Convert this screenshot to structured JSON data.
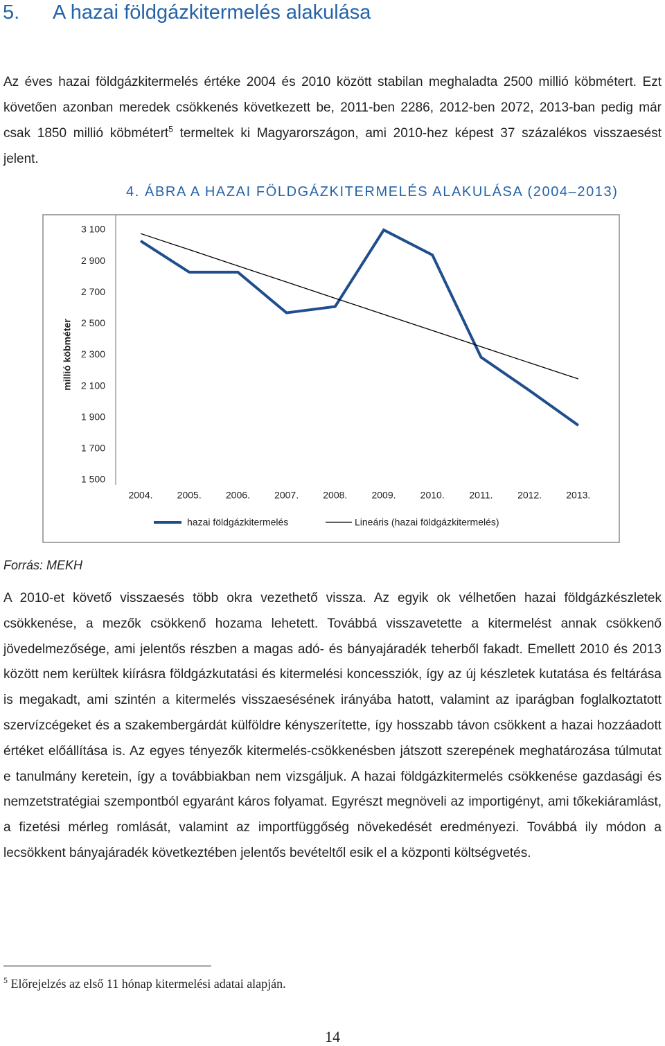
{
  "heading": {
    "number": "5.",
    "title": "A hazai földgázkitermelés alakulása"
  },
  "paragraph_1": {
    "text_before": "Az éves hazai földgázkitermelés értéke 2004 és 2010 között stabilan meghaladta 2500 millió köbmétert. Ezt követően azonban meredek csökkenés következett be, 2011-ben 2286, 2012-ben 2072, 2013-ban pedig már csak 1850 millió köbmétert",
    "footnote_ref": "5",
    "text_after": " termeltek ki Magyarországon, ami 2010-hez képest 37 százalékos visszaesést jelent."
  },
  "figure_caption": "4. ÁBRA A HAZAI FÖLDGÁZKITERMELÉS ALAKULÁSA (2004–2013)",
  "chart_data": {
    "type": "line",
    "ylabel": "millió köbméter",
    "categories": [
      "2004.",
      "2005.",
      "2006.",
      "2007.",
      "2008.",
      "2009.",
      "2010.",
      "2011.",
      "2012.",
      "2013."
    ],
    "series": [
      {
        "name": "hazai földgázkitermelés",
        "color": "#1f4e8c",
        "width": 4,
        "values": [
          3030,
          2830,
          2830,
          2570,
          2610,
          3100,
          2940,
          2286,
          2072,
          1850
        ]
      },
      {
        "name": "Lineáris (hazai földgázkitermelés)",
        "color": "#000000",
        "width": 1.3,
        "values": [
          3077,
          2974,
          2870,
          2767,
          2663,
          2560,
          2457,
          2353,
          2250,
          2147
        ]
      }
    ],
    "ylim": [
      1500,
      3100
    ],
    "yticks": [
      {
        "value": 1500,
        "label": "1 500"
      },
      {
        "value": 1700,
        "label": "1 700"
      },
      {
        "value": 1900,
        "label": "1 900"
      },
      {
        "value": 2100,
        "label": "2 100"
      },
      {
        "value": 2300,
        "label": "2 300"
      },
      {
        "value": 2500,
        "label": "2 500"
      },
      {
        "value": 2700,
        "label": "2 700"
      },
      {
        "value": 2900,
        "label": "2 900"
      },
      {
        "value": 3100,
        "label": "3 100"
      }
    ],
    "grid": false,
    "legend": "bottom"
  },
  "source": "Forrás: MEKH",
  "paragraph_2": "A 2010-et követő visszaesés több okra vezethető vissza. Az egyik ok vélhetően hazai földgázkészletek csökkenése, a mezők csökkenő hozama lehetett. Továbbá visszavetette a kitermelést annak csökkenő jövedelmezősége, ami jelentős részben a magas adó- és bányajáradék teherből fakadt. Emellett 2010 és 2013 között nem kerültek kiírásra földgázkutatási és kitermelési koncessziók, így az új készletek kutatása és feltárása is megakadt, ami szintén a kitermelés visszaesésének irányába hatott, valamint az iparágban foglalkoztatott szervízcégeket és a szakembergárdát külföldre kényszerítette, így hosszabb távon csökkent a hazai hozzáadott értéket előállítása is. Az egyes tényezők kitermelés-csökkenésben játszott szerepének meghatározása túlmutat e tanulmány keretein, így a továbbiakban nem vizsgáljuk. A hazai földgázkitermelés csökkenése gazdasági és nemzetstratégiai szempontból egyaránt káros folyamat. Egyrészt megnöveli az importigényt, ami tőkekiáramlást, a fizetési mérleg romlását, valamint az importfüggőség növekedését eredményezi. Továbbá ily módon a lecsökkent bányajáradék következtében jelentős bevételtől esik el a központi költségvetés.",
  "footnote": {
    "number": "5",
    "text": "Előrejelzés az első 11 hónap kitermelési adatai alapján."
  },
  "page_number": "14"
}
